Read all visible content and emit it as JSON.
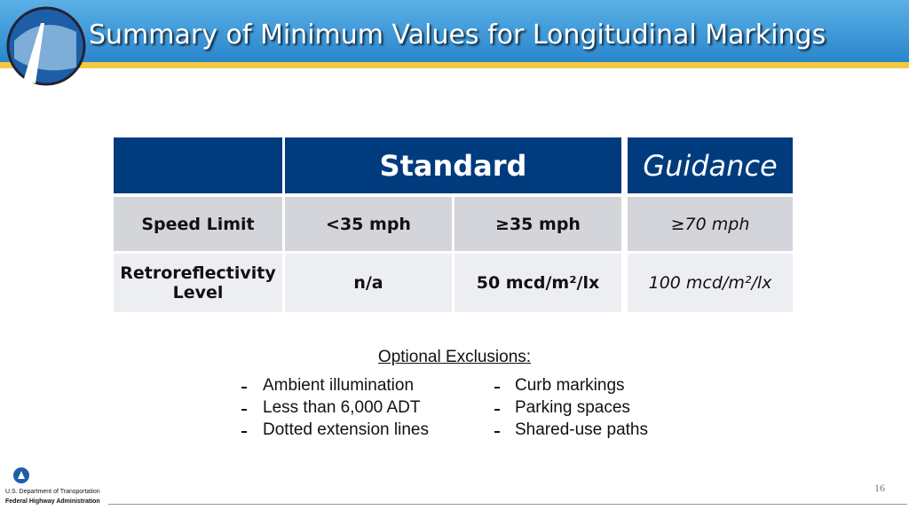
{
  "header": {
    "title": "Summary of Minimum Values for Longitudinal Markings"
  },
  "table": {
    "headers": [
      "Standard",
      "Guidance"
    ],
    "rows": [
      [
        "Speed Limit",
        "<35 mph",
        "≥35 mph",
        "≥70 mph"
      ],
      [
        "Retroreflectivity Level",
        "n/a",
        "50 mcd/m²/lx",
        "100 mcd/m²/lx"
      ]
    ]
  },
  "exclusions": {
    "heading": "Optional Exclusions:",
    "left": [
      "Ambient illumination",
      "Less than 6,000 ADT",
      "Dotted extension lines"
    ],
    "right": [
      "Curb markings",
      "Parking spaces",
      "Shared-use paths"
    ]
  },
  "footer": {
    "agency": "U.S. Department of Transportation",
    "administration": "Federal Highway Administration",
    "page": "16"
  }
}
